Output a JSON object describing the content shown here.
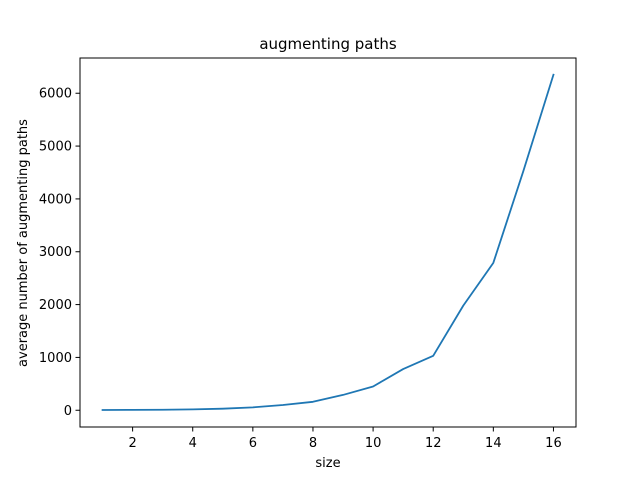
{
  "chart_data": {
    "type": "line",
    "title": "augmenting paths",
    "xlabel": "size",
    "ylabel": "average number of augmenting paths",
    "x": [
      1,
      2,
      3,
      4,
      5,
      6,
      7,
      8,
      9,
      10,
      11,
      12,
      13,
      14,
      15,
      16
    ],
    "series": [
      {
        "name": "",
        "values": [
          5,
          7,
          10,
          17,
          30,
          55,
          100,
          160,
          290,
          450,
          780,
          1030,
          1980,
          2790,
          4530,
          6350
        ]
      }
    ],
    "xlim": [
      0.25,
      16.75
    ],
    "ylim": [
      -317,
      6667
    ],
    "xticks": [
      2,
      4,
      6,
      8,
      10,
      12,
      14,
      16
    ],
    "yticks": [
      0,
      1000,
      2000,
      3000,
      4000,
      5000,
      6000
    ],
    "grid": false,
    "colors": {
      "line": "#1f77b4",
      "axes": "#000000",
      "background": "#ffffff"
    }
  }
}
